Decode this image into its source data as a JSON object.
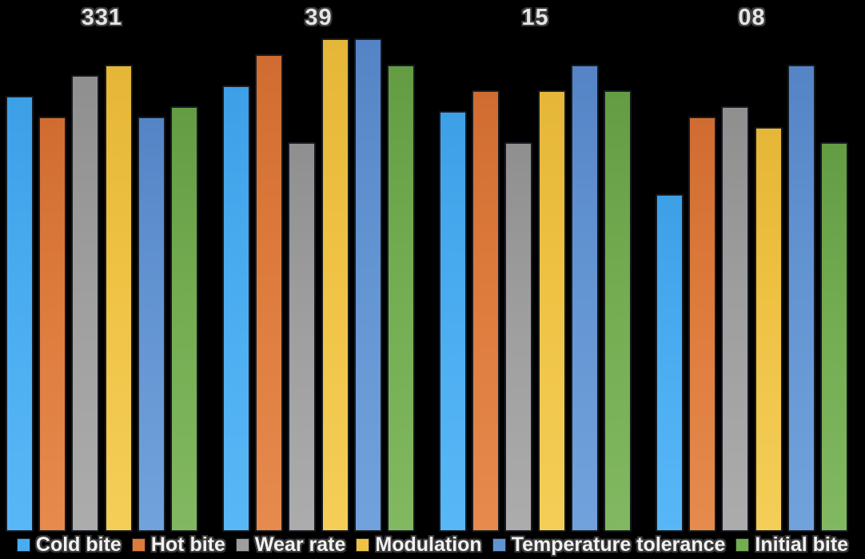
{
  "chart_data": {
    "type": "bar",
    "title": "",
    "xlabel": "",
    "ylabel": "",
    "categories": [
      "331",
      "39",
      "15",
      "08"
    ],
    "series": [
      {
        "name": "Cold bite",
        "color": "#4AACF0",
        "color_top": "#3D9FE6",
        "color_bottom": "#58B7F6",
        "values": [
          8.4,
          8.6,
          8.1,
          6.5
        ]
      },
      {
        "name": "Hot bite",
        "color": "#DD7B3C",
        "color_top": "#D06C31",
        "color_bottom": "#E68A4E",
        "values": [
          8.0,
          9.2,
          8.5,
          8.0
        ]
      },
      {
        "name": "Wear rate",
        "color": "#9E9E9E",
        "color_top": "#8F8F8F",
        "color_bottom": "#ACACAC",
        "values": [
          8.8,
          7.5,
          7.5,
          8.2
        ]
      },
      {
        "name": "Modulation",
        "color": "#EFC244",
        "color_top": "#E5B637",
        "color_bottom": "#F4CE58",
        "values": [
          9.0,
          9.5,
          8.5,
          7.8
        ]
      },
      {
        "name": "Temperature tolerance",
        "color": "#6394D2",
        "color_top": "#5584C6",
        "color_bottom": "#71A2DC",
        "values": [
          8.0,
          9.5,
          9.0,
          9.0
        ]
      },
      {
        "name": "Initial bite",
        "color": "#73AC51",
        "color_top": "#639C43",
        "color_bottom": "#81B861",
        "values": [
          8.2,
          9.0,
          8.5,
          7.5
        ]
      }
    ],
    "ylim": [
      0,
      10.2
    ],
    "grid": false,
    "axes_visible": false,
    "legend_position": "bottom",
    "background_color": "#000000",
    "label_text_color": "#E4E4E4"
  }
}
